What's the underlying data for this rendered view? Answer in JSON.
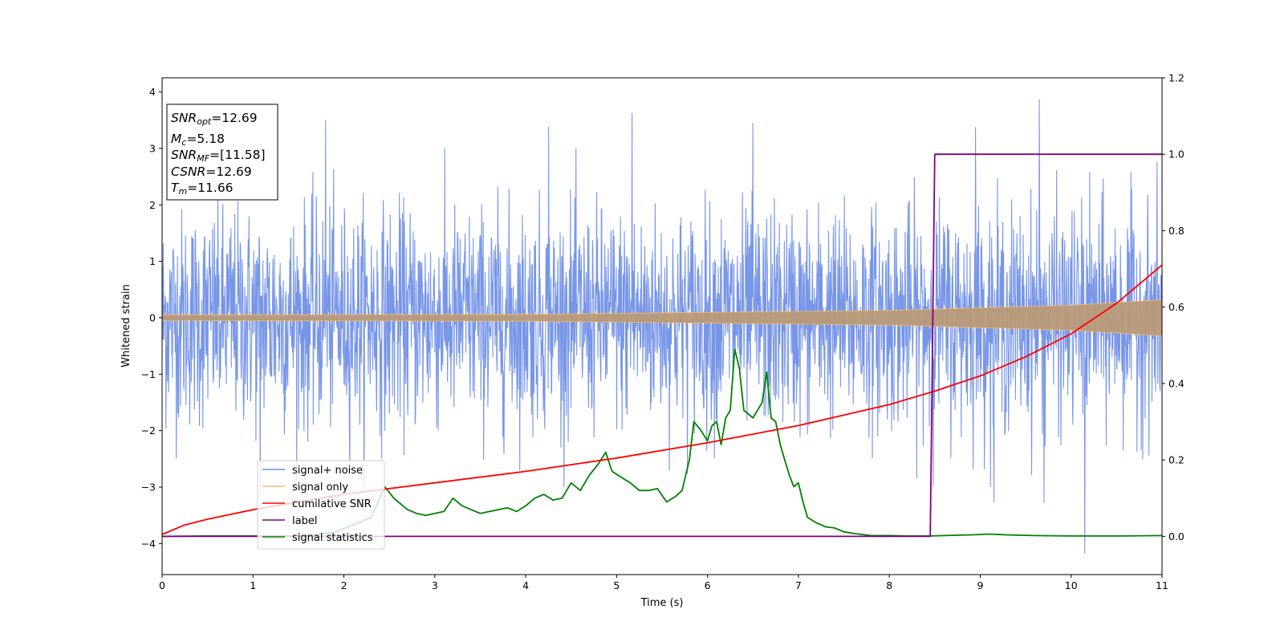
{
  "chart_data": {
    "type": "line",
    "xlabel": "Time (s)",
    "ylabel_left": "Whitened strain",
    "ylabel_right": "",
    "xlim": [
      0,
      11
    ],
    "ylim_left": [
      -4.55,
      4.25
    ],
    "ylim_right": [
      -0.1,
      1.2
    ],
    "x_ticks": [
      0,
      1,
      2,
      3,
      4,
      5,
      6,
      7,
      8,
      9,
      10,
      11
    ],
    "y_ticks_left": [
      -4,
      -3,
      -2,
      -1,
      0,
      1,
      2,
      3,
      4
    ],
    "y_ticks_right": [
      0.0,
      0.2,
      0.4,
      0.6,
      0.8,
      1.0,
      1.2
    ],
    "grid": false,
    "legend_position": "lower-left",
    "colors": {
      "signal_noise": "#6d8de6",
      "signal_only": "#f5b86a",
      "signal_overlap": "#b99a77",
      "cumulative_snr": "#ff0000",
      "label": "#800080",
      "signal_statistics": "#008000"
    },
    "info_box": {
      "snr_opt_base": "SNR",
      "snr_opt_sub": "opt",
      "snr_opt_value": "=12.69",
      "mc_base": "M",
      "mc_sub": "c",
      "mc_value": "=5.18",
      "snr_mf_base": "SNR",
      "snr_mf_sub": "MF",
      "snr_mf_value": "=[11.58]",
      "csnr_base": "CSNR",
      "csnr_value": "=12.69",
      "tm_base": "T",
      "tm_sub": "m",
      "tm_value": "=11.66"
    },
    "series": [
      {
        "name": "signal+ noise",
        "axis": "left",
        "description_kind": "noise band",
        "envelope_typical": 1.5,
        "extreme_peaks": [
          {
            "x": 1.8,
            "y": 3.5
          },
          {
            "x": 4.25,
            "y": 3.38
          },
          {
            "x": 5.17,
            "y": 3.63
          },
          {
            "x": 6.5,
            "y": 3.45
          },
          {
            "x": 8.95,
            "y": 3.38
          },
          {
            "x": 9.65,
            "y": 3.87
          },
          {
            "x": 10.15,
            "y": -4.17
          },
          {
            "x": 9.7,
            "y": -3.28
          },
          {
            "x": 9.15,
            "y": -3.27
          },
          {
            "x": 1.08,
            "y": -3.15
          }
        ]
      },
      {
        "name": "signal only",
        "axis": "left",
        "amplitude": [
          [
            0,
            0.05
          ],
          [
            4,
            0.06
          ],
          [
            8,
            0.13
          ],
          [
            10,
            0.22
          ],
          [
            11,
            0.32
          ]
        ]
      },
      {
        "name": "cumilative SNR",
        "axis": "right",
        "x": [
          0,
          0.25,
          0.5,
          1,
          1.5,
          2,
          3,
          4,
          5,
          6,
          7,
          8,
          8.5,
          9,
          9.5,
          10,
          10.5,
          11
        ],
        "y": [
          0.005,
          0.03,
          0.045,
          0.07,
          0.09,
          0.11,
          0.14,
          0.17,
          0.205,
          0.245,
          0.29,
          0.345,
          0.38,
          0.42,
          0.47,
          0.53,
          0.61,
          0.71
        ]
      },
      {
        "name": "label",
        "axis": "right",
        "x": [
          0,
          8.45,
          8.5,
          11
        ],
        "y": [
          0,
          0,
          1,
          1
        ]
      },
      {
        "name": "signal statistics",
        "axis": "right",
        "x": [
          0,
          0.5,
          1,
          1.5,
          1.9,
          2.1,
          2.3,
          2.45,
          2.55,
          2.7,
          2.8,
          2.9,
          3.0,
          3.1,
          3.2,
          3.3,
          3.4,
          3.5,
          3.6,
          3.7,
          3.8,
          3.9,
          4.0,
          4.1,
          4.2,
          4.3,
          4.4,
          4.5,
          4.6,
          4.7,
          4.8,
          4.88,
          4.95,
          5.05,
          5.15,
          5.25,
          5.35,
          5.45,
          5.55,
          5.65,
          5.72,
          5.8,
          5.85,
          5.92,
          6.0,
          6.05,
          6.1,
          6.15,
          6.2,
          6.25,
          6.3,
          6.35,
          6.4,
          6.45,
          6.5,
          6.55,
          6.6,
          6.65,
          6.7,
          6.75,
          6.8,
          6.85,
          6.9,
          6.95,
          7.0,
          7.05,
          7.1,
          7.2,
          7.3,
          7.4,
          7.5,
          7.6,
          7.7,
          7.8,
          8.0,
          8.2,
          8.45,
          8.6,
          8.9,
          9.1,
          9.3,
          9.6,
          10.0,
          10.5,
          11.0
        ],
        "y": [
          0.0,
          0.001,
          0.001,
          0.001,
          0.01,
          0.03,
          0.05,
          0.13,
          0.1,
          0.07,
          0.06,
          0.055,
          0.06,
          0.065,
          0.1,
          0.08,
          0.07,
          0.06,
          0.065,
          0.07,
          0.075,
          0.065,
          0.08,
          0.1,
          0.11,
          0.095,
          0.1,
          0.14,
          0.12,
          0.16,
          0.19,
          0.22,
          0.17,
          0.155,
          0.14,
          0.12,
          0.12,
          0.125,
          0.09,
          0.105,
          0.12,
          0.2,
          0.3,
          0.28,
          0.25,
          0.29,
          0.3,
          0.24,
          0.31,
          0.33,
          0.49,
          0.44,
          0.33,
          0.32,
          0.31,
          0.33,
          0.35,
          0.43,
          0.31,
          0.3,
          0.24,
          0.2,
          0.16,
          0.13,
          0.14,
          0.09,
          0.05,
          0.035,
          0.025,
          0.022,
          0.012,
          0.008,
          0.005,
          0.002,
          0.002,
          0.001,
          0.001,
          0.002,
          0.004,
          0.006,
          0.004,
          0.002,
          0.001,
          0.001,
          0.002
        ]
      }
    ]
  }
}
